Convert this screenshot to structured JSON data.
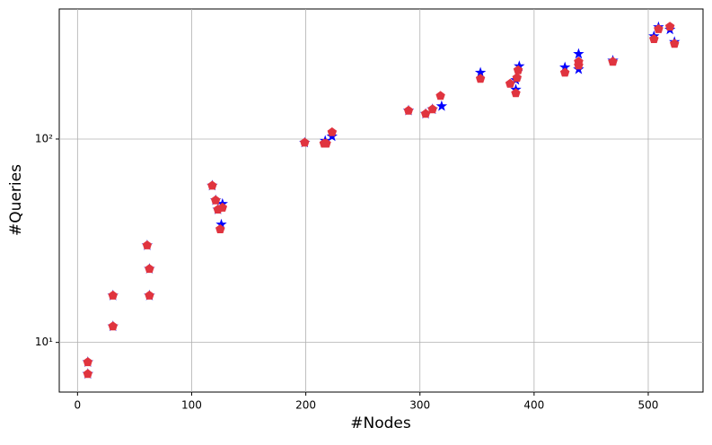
{
  "chart_data": {
    "type": "scatter",
    "xlabel": "#Nodes",
    "ylabel": "#Queries",
    "yscale": "log",
    "grid": true,
    "xlim": [
      -16,
      548
    ],
    "ylim": [
      5.7,
      436
    ],
    "xticks": [
      0,
      100,
      200,
      300,
      400,
      500
    ],
    "yticks": [
      {
        "value": 10,
        "label": "10¹"
      },
      {
        "value": 100,
        "label": "10²"
      }
    ],
    "series": [
      {
        "color": "#0000ff",
        "marker": "star",
        "x": [
          9,
          9,
          31,
          31,
          61,
          63,
          63,
          118,
          121,
          123,
          126,
          127,
          199,
          217,
          223,
          290,
          305,
          311,
          319,
          353,
          384,
          384,
          387,
          427,
          439,
          439,
          469,
          505,
          509,
          519,
          523
        ],
        "values": [
          8,
          7,
          17,
          12,
          30,
          23,
          17,
          59,
          50,
          45,
          38,
          48,
          96,
          98,
          103,
          138,
          133,
          140,
          145,
          212,
          175,
          195,
          228,
          225,
          262,
          220,
          243,
          320,
          355,
          345,
          300
        ]
      },
      {
        "color": "#e0343f",
        "marker": "pentagon",
        "x": [
          9,
          9,
          31,
          31,
          61,
          63,
          63,
          118,
          121,
          123,
          125,
          127,
          199,
          216,
          218,
          223,
          290,
          305,
          311,
          318,
          353,
          379,
          384,
          385,
          386,
          427,
          439,
          439,
          469,
          505,
          509,
          519,
          523
        ],
        "values": [
          8,
          7,
          17,
          12,
          30,
          23,
          17,
          59,
          50,
          45,
          36,
          46,
          96,
          95,
          95,
          108,
          138,
          133,
          140,
          163,
          198,
          187,
          168,
          200,
          218,
          212,
          230,
          240,
          240,
          310,
          347,
          357,
          294
        ]
      }
    ]
  }
}
